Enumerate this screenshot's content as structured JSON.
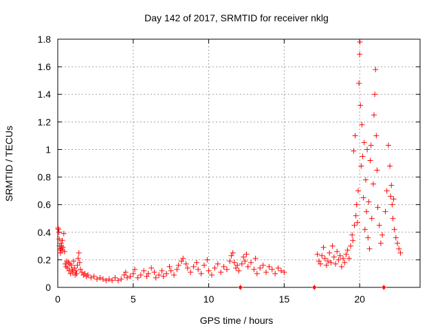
{
  "chart_data": {
    "type": "scatter",
    "title": "Day 142 of 2017, SRMTID for receiver nklg",
    "xlabel": "GPS time / hours",
    "ylabel": "SRMTID / TECUs",
    "xlim": [
      0,
      24
    ],
    "ylim": [
      0,
      1.8
    ],
    "xticks": [
      0,
      5,
      10,
      15,
      20
    ],
    "xtick_labels": [
      "0",
      "5",
      "10",
      "15",
      "20"
    ],
    "yticks": [
      0,
      0.2,
      0.4,
      0.6,
      0.8,
      1.0,
      1.2,
      1.4,
      1.6,
      1.8
    ],
    "ytick_labels": [
      "0",
      "0.2",
      "0.4",
      "0.6",
      "0.8",
      "1",
      "1.2",
      "1.4",
      "1.6",
      "1.8"
    ],
    "grid": true,
    "marker": "+",
    "marker_color": "#ff0000",
    "series": [
      {
        "name": "SRMTID",
        "points": [
          [
            0.02,
            0.43
          ],
          [
            0.05,
            0.42
          ],
          [
            0.08,
            0.4
          ],
          [
            0.1,
            0.35
          ],
          [
            0.12,
            0.3
          ],
          [
            0.15,
            0.27
          ],
          [
            0.18,
            0.25
          ],
          [
            0.2,
            0.28
          ],
          [
            0.22,
            0.32
          ],
          [
            0.25,
            0.3
          ],
          [
            0.28,
            0.27
          ],
          [
            0.3,
            0.34
          ],
          [
            0.35,
            0.29
          ],
          [
            0.4,
            0.39
          ],
          [
            0.45,
            0.26
          ],
          [
            0.5,
            0.17
          ],
          [
            0.55,
            0.15
          ],
          [
            0.6,
            0.19
          ],
          [
            0.65,
            0.14
          ],
          [
            0.7,
            0.18
          ],
          [
            0.75,
            0.12
          ],
          [
            0.8,
            0.17
          ],
          [
            0.85,
            0.1
          ],
          [
            0.9,
            0.16
          ],
          [
            0.95,
            0.13
          ],
          [
            1.0,
            0.11
          ],
          [
            1.05,
            0.19
          ],
          [
            1.1,
            0.14
          ],
          [
            1.15,
            0.09
          ],
          [
            1.2,
            0.12
          ],
          [
            1.25,
            0.1
          ],
          [
            1.3,
            0.16
          ],
          [
            1.35,
            0.21
          ],
          [
            1.4,
            0.25
          ],
          [
            1.45,
            0.18
          ],
          [
            1.5,
            0.13
          ],
          [
            1.6,
            0.11
          ],
          [
            1.7,
            0.09
          ],
          [
            1.8,
            0.1
          ],
          [
            1.9,
            0.08
          ],
          [
            2.0,
            0.09
          ],
          [
            2.2,
            0.07
          ],
          [
            2.4,
            0.08
          ],
          [
            2.6,
            0.06
          ],
          [
            2.8,
            0.07
          ],
          [
            3.0,
            0.06
          ],
          [
            3.2,
            0.05
          ],
          [
            3.4,
            0.06
          ],
          [
            3.6,
            0.05
          ],
          [
            3.8,
            0.07
          ],
          [
            4.0,
            0.05
          ],
          [
            4.2,
            0.06
          ],
          [
            4.4,
            0.09
          ],
          [
            4.5,
            0.11
          ],
          [
            4.6,
            0.07
          ],
          [
            4.8,
            0.08
          ],
          [
            5.0,
            0.1
          ],
          [
            5.1,
            0.13
          ],
          [
            5.3,
            0.07
          ],
          [
            5.5,
            0.09
          ],
          [
            5.7,
            0.12
          ],
          [
            5.9,
            0.08
          ],
          [
            6.0,
            0.1
          ],
          [
            6.2,
            0.14
          ],
          [
            6.4,
            0.11
          ],
          [
            6.5,
            0.07
          ],
          [
            6.7,
            0.09
          ],
          [
            6.9,
            0.12
          ],
          [
            7.0,
            0.08
          ],
          [
            7.2,
            0.1
          ],
          [
            7.4,
            0.15
          ],
          [
            7.5,
            0.12
          ],
          [
            7.7,
            0.09
          ],
          [
            7.9,
            0.13
          ],
          [
            8.0,
            0.16
          ],
          [
            8.2,
            0.19
          ],
          [
            8.3,
            0.21
          ],
          [
            8.5,
            0.17
          ],
          [
            8.6,
            0.14
          ],
          [
            8.8,
            0.11
          ],
          [
            9.0,
            0.15
          ],
          [
            9.2,
            0.18
          ],
          [
            9.3,
            0.13
          ],
          [
            9.5,
            0.1
          ],
          [
            9.7,
            0.16
          ],
          [
            9.9,
            0.2
          ],
          [
            10.0,
            0.12
          ],
          [
            10.2,
            0.09
          ],
          [
            10.4,
            0.14
          ],
          [
            10.6,
            0.17
          ],
          [
            10.8,
            0.11
          ],
          [
            11.0,
            0.15
          ],
          [
            11.2,
            0.13
          ],
          [
            11.4,
            0.19
          ],
          [
            11.5,
            0.23
          ],
          [
            11.6,
            0.25
          ],
          [
            11.7,
            0.18
          ],
          [
            11.8,
            0.14
          ],
          [
            11.9,
            0.16
          ],
          [
            12.0,
            0.12
          ],
          [
            12.1,
            0.0
          ],
          [
            12.2,
            0.17
          ],
          [
            12.3,
            0.22
          ],
          [
            12.4,
            0.19
          ],
          [
            12.5,
            0.24
          ],
          [
            12.6,
            0.15
          ],
          [
            12.8,
            0.18
          ],
          [
            13.0,
            0.13
          ],
          [
            13.1,
            0.21
          ],
          [
            13.2,
            0.1
          ],
          [
            13.4,
            0.14
          ],
          [
            13.6,
            0.16
          ],
          [
            13.8,
            0.11
          ],
          [
            14.0,
            0.15
          ],
          [
            14.2,
            0.13
          ],
          [
            14.4,
            0.1
          ],
          [
            14.6,
            0.14
          ],
          [
            14.8,
            0.12
          ],
          [
            15.0,
            0.11
          ],
          [
            17.0,
            0.0
          ],
          [
            17.2,
            0.24
          ],
          [
            17.3,
            0.19
          ],
          [
            17.4,
            0.17
          ],
          [
            17.5,
            0.23
          ],
          [
            17.6,
            0.29
          ],
          [
            17.7,
            0.21
          ],
          [
            17.8,
            0.16
          ],
          [
            17.9,
            0.19
          ],
          [
            18.0,
            0.25
          ],
          [
            18.1,
            0.18
          ],
          [
            18.2,
            0.3
          ],
          [
            18.3,
            0.22
          ],
          [
            18.4,
            0.17
          ],
          [
            18.5,
            0.26
          ],
          [
            18.6,
            0.2
          ],
          [
            18.7,
            0.23
          ],
          [
            18.8,
            0.15
          ],
          [
            18.9,
            0.21
          ],
          [
            19.0,
            0.18
          ],
          [
            19.1,
            0.24
          ],
          [
            19.2,
            0.27
          ],
          [
            19.3,
            0.21
          ],
          [
            19.4,
            0.3
          ],
          [
            19.5,
            0.38
          ],
          [
            19.55,
            0.34
          ],
          [
            19.6,
            0.99
          ],
          [
            19.65,
            0.45
          ],
          [
            19.7,
            1.1
          ],
          [
            19.75,
            0.52
          ],
          [
            19.8,
            0.6
          ],
          [
            19.85,
            0.47
          ],
          [
            19.9,
            0.7
          ],
          [
            19.95,
            1.48
          ],
          [
            20.0,
            1.69
          ],
          [
            20.02,
            1.78
          ],
          [
            20.05,
            1.32
          ],
          [
            20.1,
            0.88
          ],
          [
            20.15,
            1.18
          ],
          [
            20.2,
            0.95
          ],
          [
            20.25,
            0.65
          ],
          [
            20.3,
            1.05
          ],
          [
            20.35,
            0.42
          ],
          [
            20.4,
            0.78
          ],
          [
            20.45,
            0.55
          ],
          [
            20.5,
            1.0
          ],
          [
            20.55,
            0.36
          ],
          [
            20.6,
            0.62
          ],
          [
            20.65,
            0.28
          ],
          [
            20.7,
            0.92
          ],
          [
            20.75,
            1.03
          ],
          [
            20.8,
            0.5
          ],
          [
            20.9,
            0.75
          ],
          [
            20.95,
            1.25
          ],
          [
            21.0,
            1.4
          ],
          [
            21.05,
            1.58
          ],
          [
            21.1,
            1.1
          ],
          [
            21.15,
            0.85
          ],
          [
            21.2,
            0.58
          ],
          [
            21.3,
            0.45
          ],
          [
            21.4,
            0.32
          ],
          [
            21.5,
            0.38
          ],
          [
            21.6,
            0.0
          ],
          [
            21.7,
            0.55
          ],
          [
            21.8,
            0.7
          ],
          [
            21.9,
            1.03
          ],
          [
            22.0,
            0.88
          ],
          [
            22.05,
            0.66
          ],
          [
            22.1,
            0.74
          ],
          [
            22.15,
            0.6
          ],
          [
            22.2,
            0.5
          ],
          [
            22.25,
            0.64
          ],
          [
            22.3,
            0.42
          ],
          [
            22.4,
            0.36
          ],
          [
            22.5,
            0.32
          ],
          [
            22.6,
            0.28
          ],
          [
            22.7,
            0.25
          ]
        ]
      }
    ],
    "zero_markers_x": [
      12.1,
      17.0,
      21.6
    ]
  }
}
